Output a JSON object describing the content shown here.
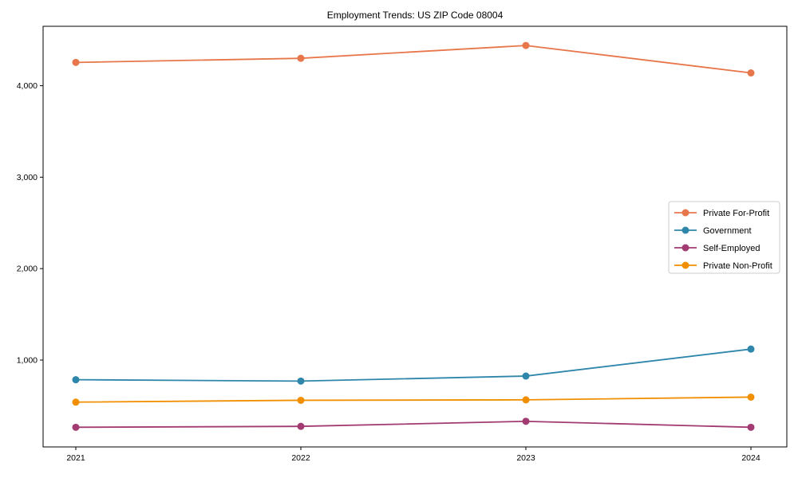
{
  "title": "Employment Trends: US ZIP Code 08004",
  "chart_data": {
    "type": "line",
    "title": "Employment Trends: US ZIP Code 08004",
    "xlabel": "",
    "ylabel": "",
    "categories": [
      "2021",
      "2022",
      "2023",
      "2024"
    ],
    "series": [
      {
        "name": "Private For-Profit",
        "color": "#E8764B",
        "values": [
          4255,
          4300,
          4440,
          4140
        ]
      },
      {
        "name": "Government",
        "color": "#2E86AB",
        "values": [
          785,
          770,
          825,
          1120
        ]
      },
      {
        "name": "Self-Employed",
        "color": "#A23B72",
        "values": [
          265,
          275,
          330,
          265
        ]
      },
      {
        "name": "Private Non-Profit",
        "color": "#F18F01",
        "values": [
          540,
          560,
          565,
          595
        ]
      }
    ],
    "ylim": [
      50,
      4650
    ],
    "yticks": [
      {
        "value": 1000,
        "label": "1,000"
      },
      {
        "value": 2000,
        "label": "2,000"
      },
      {
        "value": 3000,
        "label": "3,000"
      },
      {
        "value": 4000,
        "label": "4,000"
      }
    ],
    "grid": false,
    "legend_position": "center-right",
    "marker": "circle",
    "frame_color": "#000000",
    "legend_border_color": "#cccccc"
  }
}
